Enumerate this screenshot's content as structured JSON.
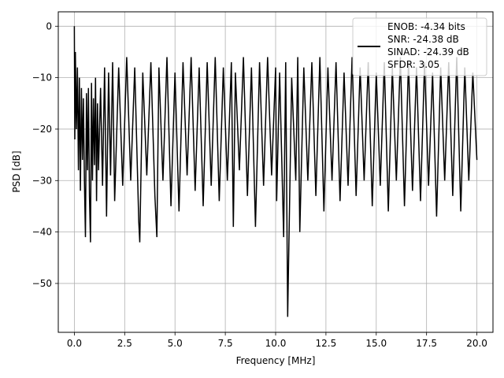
{
  "chart_data": {
    "type": "line",
    "xlabel": "Frequency [MHz]",
    "ylabel": "PSD [dB]",
    "xlim": [
      -0.8,
      20.8
    ],
    "ylim": [
      -59.5,
      2.8
    ],
    "xticks": [
      0.0,
      2.5,
      5.0,
      7.5,
      10.0,
      12.5,
      15.0,
      17.5,
      20.0
    ],
    "xtick_labels": [
      "0.0",
      "2.5",
      "5.0",
      "7.5",
      "10.0",
      "12.5",
      "15.0",
      "17.5",
      "20.0"
    ],
    "yticks": [
      0,
      -10,
      -20,
      -30,
      -40,
      -50
    ],
    "ytick_labels": [
      "0",
      "−10",
      "−20",
      "−30",
      "−40",
      "−50"
    ],
    "grid": true,
    "legend": {
      "placement": "top-right",
      "entries": [
        "ENOB: -4.34 bits",
        "SNR: -24.38 dB",
        "SINAD: -24.39 dB",
        "SFDR: 3.05"
      ]
    },
    "series": [
      {
        "color": "#000000",
        "x": [
          0.0,
          0.02,
          0.05,
          0.1,
          0.15,
          0.2,
          0.25,
          0.3,
          0.35,
          0.4,
          0.45,
          0.5,
          0.55,
          0.6,
          0.65,
          0.7,
          0.75,
          0.8,
          0.85,
          0.9,
          0.95,
          1.0,
          1.05,
          1.1,
          1.15,
          1.2,
          1.3,
          1.4,
          1.5,
          1.6,
          1.7,
          1.8,
          1.9,
          2.0,
          2.2,
          2.4,
          2.6,
          2.8,
          3.0,
          3.2,
          3.25,
          3.4,
          3.6,
          3.8,
          4.0,
          4.1,
          4.2,
          4.4,
          4.6,
          4.8,
          5.0,
          5.2,
          5.4,
          5.6,
          5.8,
          6.0,
          6.2,
          6.4,
          6.6,
          6.8,
          7.0,
          7.2,
          7.4,
          7.6,
          7.8,
          7.9,
          8.0,
          8.2,
          8.4,
          8.6,
          8.8,
          9.0,
          9.2,
          9.4,
          9.6,
          9.8,
          10.0,
          10.05,
          10.2,
          10.4,
          10.5,
          10.6,
          10.8,
          11.0,
          11.1,
          11.2,
          11.4,
          11.6,
          11.8,
          12.0,
          12.2,
          12.4,
          12.6,
          12.8,
          13.0,
          13.2,
          13.4,
          13.6,
          13.8,
          14.0,
          14.2,
          14.4,
          14.6,
          14.8,
          15.0,
          15.2,
          15.4,
          15.6,
          15.8,
          16.0,
          16.2,
          16.4,
          16.6,
          16.8,
          17.0,
          17.2,
          17.4,
          17.6,
          17.8,
          18.0,
          18.2,
          18.4,
          18.6,
          18.8,
          19.0,
          19.2,
          19.4,
          19.6,
          19.8,
          20.0
        ],
        "y": [
          0.0,
          -22,
          -5,
          -20,
          -8,
          -28,
          -10,
          -32,
          -12,
          -26,
          -14,
          -30,
          -41,
          -13,
          -28,
          -12,
          -33,
          -42,
          -11,
          -30,
          -14,
          -27,
          -10,
          -34,
          -15,
          -28,
          -12,
          -31,
          -8,
          -37,
          -9,
          -29,
          -7,
          -34,
          -8,
          -31,
          -6,
          -30,
          -8,
          -38,
          -42,
          -9,
          -29,
          -7,
          -33,
          -41,
          -8,
          -30,
          -6,
          -35,
          -9,
          -36,
          -7,
          -29,
          -6,
          -32,
          -8,
          -35,
          -7,
          -31,
          -6,
          -34,
          -8,
          -30,
          -7,
          -39,
          -9,
          -28,
          -6,
          -33,
          -8,
          -39,
          -7,
          -31,
          -6,
          -29,
          -8,
          -34,
          -9,
          -41,
          -7,
          -56.5,
          -10,
          -30,
          -6,
          -40,
          -8,
          -30,
          -7,
          -33,
          -6,
          -36,
          -8,
          -30,
          -7,
          -34,
          -9,
          -31,
          -6,
          -33,
          -8,
          -30,
          -7,
          -35,
          -9,
          -31,
          -7,
          -36,
          -8,
          -30,
          -6,
          -35,
          -7,
          -32,
          -8,
          -34,
          -7,
          -31,
          -9,
          -37,
          -8,
          -30,
          -7,
          -33,
          -6,
          -36,
          -8,
          -30,
          -9,
          -26
        ]
      }
    ]
  }
}
